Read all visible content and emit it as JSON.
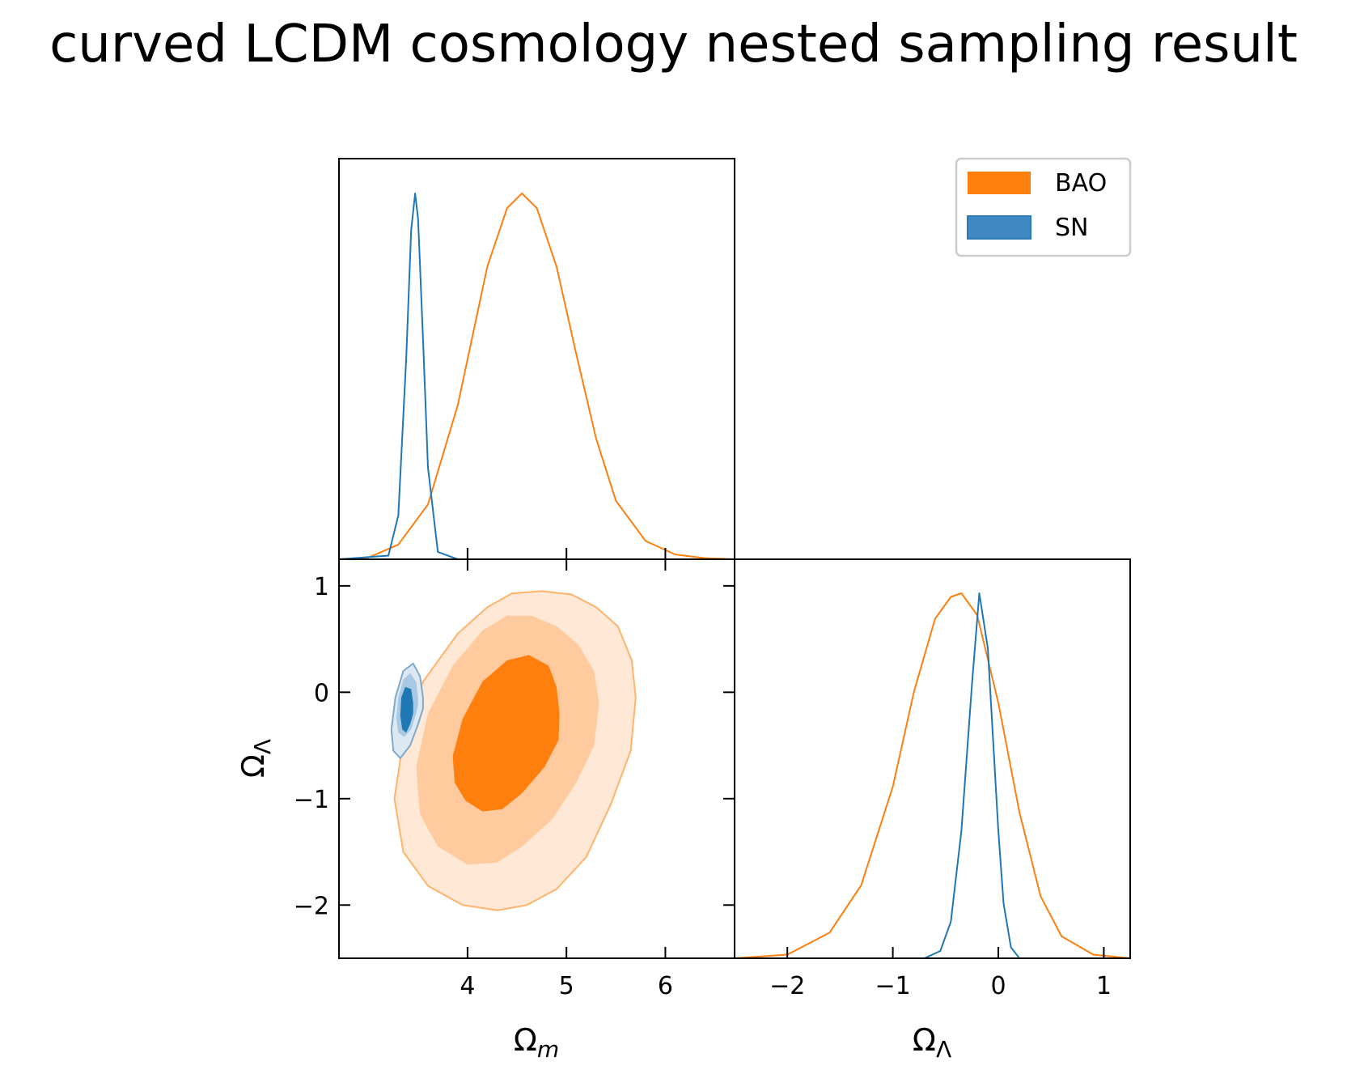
{
  "title": "curved LCDM cosmology nested sampling result",
  "chart_data": [
    {
      "type": "line",
      "panel": "marginal-omega-m",
      "xlim": [
        2.7,
        6.7
      ],
      "series": [
        {
          "name": "BAO",
          "color": "#ff7f0e",
          "x": [
            2.7,
            3.0,
            3.3,
            3.6,
            3.9,
            4.2,
            4.4,
            4.55,
            4.7,
            4.9,
            5.1,
            5.3,
            5.5,
            5.8,
            6.1,
            6.4,
            6.7
          ],
          "y": [
            0.0,
            0.005,
            0.04,
            0.15,
            0.42,
            0.8,
            0.96,
            1.0,
            0.96,
            0.8,
            0.56,
            0.33,
            0.16,
            0.05,
            0.013,
            0.003,
            0.0
          ]
        },
        {
          "name": "SN",
          "color": "#1f77b4",
          "x": [
            2.7,
            3.2,
            3.3,
            3.38,
            3.43,
            3.47,
            3.5,
            3.55,
            3.6,
            3.7,
            3.9,
            6.7
          ],
          "y": [
            0.0,
            0.01,
            0.12,
            0.55,
            0.9,
            1.0,
            0.93,
            0.6,
            0.25,
            0.02,
            0.0,
            0.0
          ]
        }
      ]
    },
    {
      "type": "line",
      "panel": "marginal-omega-lambda",
      "xlim": [
        -2.5,
        1.25
      ],
      "xlabel": "Ω_Λ",
      "xticks": [
        "−2",
        "−1",
        "0",
        "1"
      ],
      "series": [
        {
          "name": "BAO",
          "color": "#ff7f0e",
          "x": [
            -2.5,
            -2.0,
            -1.6,
            -1.3,
            -1.0,
            -0.8,
            -0.6,
            -0.45,
            -0.35,
            -0.2,
            0.0,
            0.2,
            0.4,
            0.6,
            0.9,
            1.25
          ],
          "y": [
            0.0,
            0.01,
            0.07,
            0.2,
            0.47,
            0.73,
            0.93,
            0.99,
            1.0,
            0.94,
            0.7,
            0.4,
            0.17,
            0.06,
            0.01,
            0.0
          ]
        },
        {
          "name": "SN",
          "color": "#1f77b4",
          "x": [
            -2.5,
            -0.7,
            -0.55,
            -0.45,
            -0.35,
            -0.25,
            -0.18,
            -0.1,
            -0.05,
            0.0,
            0.05,
            0.12,
            0.2,
            1.25
          ],
          "y": [
            0.0,
            0.0,
            0.02,
            0.1,
            0.35,
            0.75,
            1.0,
            0.85,
            0.6,
            0.35,
            0.15,
            0.03,
            0.0,
            0.0
          ]
        }
      ]
    },
    {
      "type": "contour",
      "panel": "joint-omega-m-omega-lambda",
      "xlim": [
        2.7,
        6.7
      ],
      "ylim": [
        -2.5,
        1.25
      ],
      "xlabel": "Ω_m",
      "ylabel": "Ω_Λ",
      "xticks": [
        "4",
        "5",
        "6"
      ],
      "yticks": [
        "−2",
        "−1",
        "0",
        "1"
      ],
      "series": [
        {
          "name": "BAO",
          "color": "#ff7f0e",
          "levels": [
            {
              "fill": "#ffe8d6",
              "stroke": "#ffb36b",
              "x": [
                5.7,
                5.66,
                5.52,
                5.3,
                5.05,
                4.75,
                4.45,
                4.2,
                3.9,
                3.55,
                3.35,
                3.26,
                3.35,
                3.6,
                3.95,
                4.3,
                4.6,
                4.9,
                5.2,
                5.45,
                5.65
              ],
              "y": [
                -0.05,
                0.3,
                0.62,
                0.8,
                0.92,
                0.95,
                0.93,
                0.8,
                0.55,
                0.1,
                -0.45,
                -1.0,
                -1.5,
                -1.82,
                -2.0,
                -2.05,
                -2.0,
                -1.85,
                -1.55,
                -1.05,
                -0.55
              ]
            },
            {
              "fill": "#ffcb9e",
              "x": [
                5.33,
                5.28,
                5.12,
                4.9,
                4.65,
                4.4,
                4.15,
                3.85,
                3.6,
                3.48,
                3.52,
                3.7,
                4.0,
                4.3,
                4.55,
                4.85,
                5.1,
                5.28
              ],
              "y": [
                -0.1,
                0.2,
                0.45,
                0.62,
                0.72,
                0.72,
                0.58,
                0.25,
                -0.2,
                -0.7,
                -1.15,
                -1.45,
                -1.62,
                -1.6,
                -1.45,
                -1.2,
                -0.85,
                -0.5
              ]
            },
            {
              "fill": "#ff7f0e",
              "x": [
                4.93,
                4.9,
                4.82,
                4.62,
                4.4,
                4.15,
                3.95,
                3.85,
                3.87,
                3.98,
                4.15,
                4.35,
                4.55,
                4.78,
                4.92
              ],
              "y": [
                -0.2,
                0.05,
                0.25,
                0.35,
                0.3,
                0.1,
                -0.25,
                -0.6,
                -0.85,
                -1.02,
                -1.12,
                -1.1,
                -0.95,
                -0.7,
                -0.45
              ]
            }
          ]
        },
        {
          "name": "SN",
          "color": "#1f77b4",
          "levels": [
            {
              "fill": "#dce9f3",
              "stroke": "#7fa9cc",
              "x": [
                3.55,
                3.52,
                3.45,
                3.35,
                3.27,
                3.23,
                3.25,
                3.32,
                3.42,
                3.5,
                3.55
              ],
              "y": [
                -0.05,
                0.15,
                0.27,
                0.2,
                -0.05,
                -0.35,
                -0.55,
                -0.62,
                -0.5,
                -0.3,
                -0.15
              ]
            },
            {
              "fill": "#a9c8e2",
              "x": [
                3.5,
                3.48,
                3.42,
                3.35,
                3.3,
                3.28,
                3.3,
                3.36,
                3.43,
                3.48,
                3.5
              ],
              "y": [
                -0.05,
                0.1,
                0.18,
                0.12,
                -0.05,
                -0.25,
                -0.38,
                -0.42,
                -0.35,
                -0.2,
                -0.12
              ]
            },
            {
              "fill": "#1f77b4",
              "x": [
                3.45,
                3.43,
                3.37,
                3.33,
                3.32,
                3.34,
                3.38,
                3.42,
                3.45
              ],
              "y": [
                -0.1,
                0.03,
                0.05,
                -0.05,
                -0.22,
                -0.35,
                -0.38,
                -0.3,
                -0.2
              ]
            }
          ]
        }
      ]
    }
  ],
  "legend": {
    "placement": "top-right",
    "entries": [
      {
        "label": "BAO",
        "color": "#ff7f0e"
      },
      {
        "label": "SN",
        "color": "#1f77b4"
      }
    ]
  }
}
